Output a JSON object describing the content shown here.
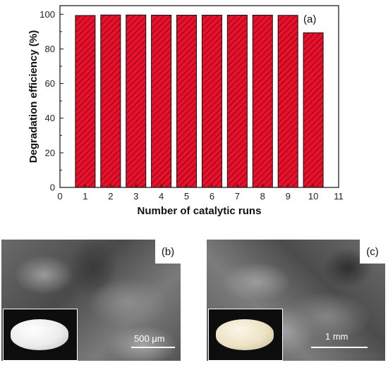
{
  "chart_data": {
    "type": "bar",
    "xlabel": "Number of catalytic runs",
    "ylabel": "Degradation efficiency (%)",
    "x": [
      1,
      2,
      3,
      4,
      5,
      6,
      7,
      8,
      9,
      10
    ],
    "values": [
      99.3,
      99.6,
      99.6,
      99.5,
      99.5,
      99.5,
      99.5,
      99.5,
      99.4,
      89.3
    ],
    "xlim": [
      0,
      11
    ],
    "ylim": [
      0,
      105
    ],
    "xticks": [
      "0",
      "1",
      "2",
      "3",
      "4",
      "5",
      "6",
      "7",
      "8",
      "9",
      "10",
      "11"
    ],
    "yticks": [
      "0",
      "20",
      "40",
      "60",
      "80",
      "100"
    ],
    "bar_color": "#e8102a",
    "bar_pattern": "diagonal-hatch",
    "panel_label": "(a)",
    "grid": false
  },
  "panels": {
    "b": {
      "label": "(b)",
      "scale_label": "500 μm"
    },
    "c": {
      "label": "(c)",
      "scale_label": "1 mm"
    }
  }
}
